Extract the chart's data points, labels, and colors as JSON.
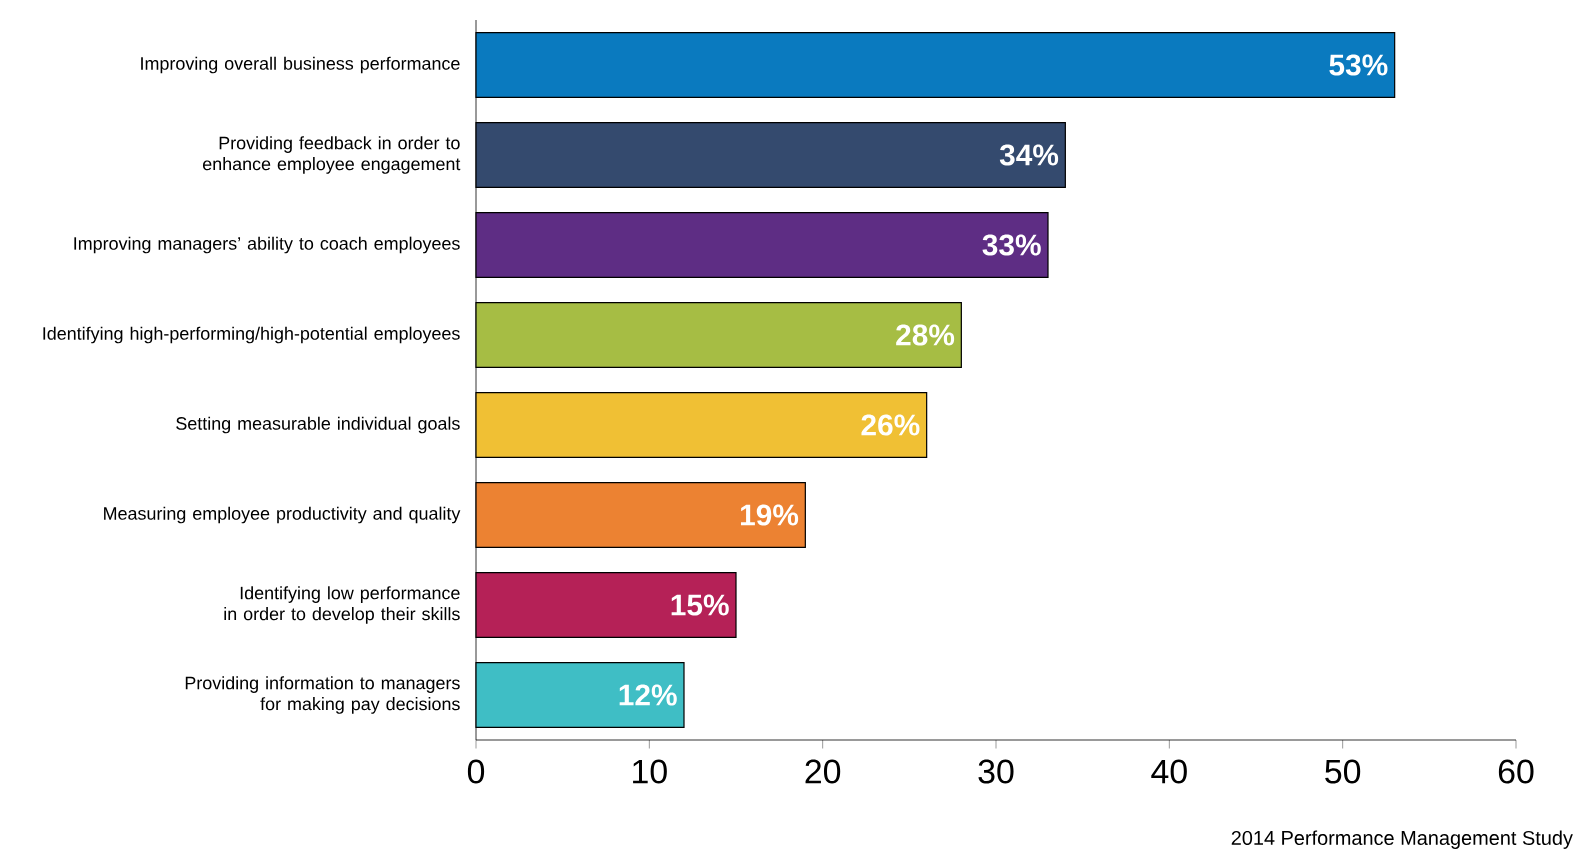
{
  "chart_data": {
    "type": "bar",
    "orientation": "horizontal",
    "categories": [
      "Improving overall business performance",
      "Providing feedback in order to enhance employee engagement",
      "Improving managers’ ability to coach employees",
      "Identifying high-performing/high-potential employees",
      "Setting measurable individual goals",
      "Measuring employee productivity and quality",
      "Identifying low performance in order to develop their skills",
      "Providing information to managers for making pay decisions"
    ],
    "values": [
      53,
      34,
      33,
      28,
      26,
      19,
      15,
      12
    ],
    "colors": [
      "#0a7abf",
      "#344a6e",
      "#5e2d84",
      "#a6bd44",
      "#f0c034",
      "#ec8232",
      "#b52157",
      "#3fbec5"
    ],
    "value_labels": [
      "53%",
      "34%",
      "33%",
      "28%",
      "26%",
      "19%",
      "15%",
      "12%"
    ],
    "xlim": [
      0,
      60
    ],
    "xticks": [
      0,
      10,
      20,
      30,
      40,
      50,
      60
    ],
    "annotations": [
      "2014 Performance Management Study"
    ]
  }
}
